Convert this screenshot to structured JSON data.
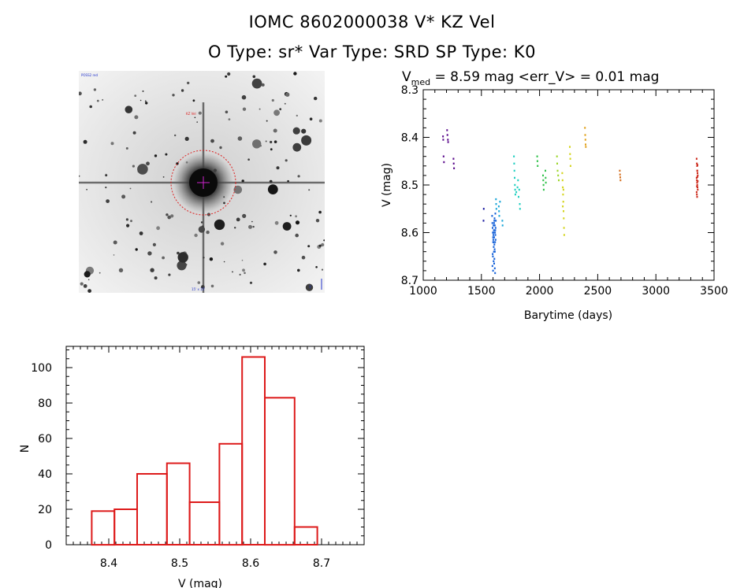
{
  "header": {
    "title": "IOMC 8602000038    V* KZ Vel",
    "subtitle": "O Type: sr*  Var Type: SRD  SP Type: K0"
  },
  "finder": {
    "top_left_label": "POSS2 red",
    "target_label": "KZ Vel",
    "bottom_label": "15' x 15'",
    "scale_label": "1'",
    "colors": {
      "circle": "#dd2222",
      "label": "#2233cc"
    }
  },
  "chart_data": [
    {
      "type": "scatter",
      "title_prefix": "V",
      "title_sub": "med",
      "title_rest": " = 8.59 mag <err_V> = 0.01 mag",
      "xlabel": "Barytime (days)",
      "ylabel": "V (mag)",
      "xlim": [
        1000,
        3500
      ],
      "ylim": [
        8.7,
        8.3
      ],
      "xticks": [
        1000,
        1500,
        2000,
        2500,
        3000,
        3500
      ],
      "yticks": [
        8.3,
        8.4,
        8.5,
        8.6,
        8.7
      ],
      "groups": [
        {
          "color": "#5a0a8c",
          "points": [
            [
              1170,
              8.398
            ],
            [
              1172,
              8.405
            ],
            [
              1175,
              8.44
            ],
            [
              1178,
              8.452
            ],
            [
              1205,
              8.385
            ],
            [
              1208,
              8.395
            ],
            [
              1212,
              8.405
            ],
            [
              1214,
              8.41
            ],
            [
              1260,
              8.445
            ],
            [
              1262,
              8.455
            ],
            [
              1265,
              8.465
            ]
          ]
        },
        {
          "color": "#1a1aa0",
          "points": [
            [
              1520,
              8.55
            ],
            [
              1518,
              8.575
            ]
          ]
        },
        {
          "color": "#1460d8",
          "points": [
            [
              1592,
              8.565
            ],
            [
              1594,
              8.58
            ],
            [
              1596,
              8.59
            ],
            [
              1598,
              8.6
            ],
            [
              1600,
              8.61
            ],
            [
              1602,
              8.615
            ],
            [
              1604,
              8.62
            ],
            [
              1606,
              8.63
            ],
            [
              1608,
              8.64
            ],
            [
              1597,
              8.645
            ],
            [
              1599,
              8.65
            ],
            [
              1601,
              8.62
            ],
            [
              1603,
              8.605
            ],
            [
              1605,
              8.6
            ],
            [
              1607,
              8.595
            ],
            [
              1609,
              8.58
            ],
            [
              1611,
              8.575
            ],
            [
              1613,
              8.57
            ],
            [
              1615,
              8.585
            ],
            [
              1617,
              8.6
            ],
            [
              1610,
              8.61
            ],
            [
              1612,
              8.625
            ],
            [
              1614,
              8.635
            ],
            [
              1616,
              8.64
            ],
            [
              1618,
              8.62
            ],
            [
              1620,
              8.605
            ],
            [
              1622,
              8.59
            ],
            [
              1624,
              8.575
            ],
            [
              1620,
              8.56
            ],
            [
              1595,
              8.67
            ],
            [
              1600,
              8.68
            ],
            [
              1605,
              8.66
            ],
            [
              1610,
              8.665
            ],
            [
              1615,
              8.675
            ],
            [
              1618,
              8.685
            ],
            [
              1612,
              8.655
            ],
            [
              1604,
              8.585
            ],
            [
              1622,
              8.615
            ],
            [
              1619,
              8.595
            ]
          ]
        },
        {
          "color": "#1aa6d8",
          "points": [
            [
              1625,
              8.53
            ],
            [
              1627,
              8.54
            ],
            [
              1629,
              8.55
            ],
            [
              1650,
              8.545
            ],
            [
              1652,
              8.555
            ],
            [
              1654,
              8.565
            ],
            [
              1660,
              8.535
            ],
            [
              1680,
              8.575
            ],
            [
              1682,
              8.585
            ]
          ]
        },
        {
          "color": "#20cfc0",
          "points": [
            [
              1780,
              8.44
            ],
            [
              1782,
              8.455
            ],
            [
              1784,
              8.47
            ],
            [
              1786,
              8.485
            ],
            [
              1788,
              8.5
            ],
            [
              1790,
              8.51
            ],
            [
              1792,
              8.52
            ],
            [
              1800,
              8.515
            ],
            [
              1810,
              8.505
            ],
            [
              1815,
              8.49
            ],
            [
              1820,
              8.525
            ],
            [
              1825,
              8.51
            ],
            [
              1830,
              8.54
            ],
            [
              1832,
              8.55
            ]
          ]
        },
        {
          "color": "#30c24a",
          "points": [
            [
              1980,
              8.44
            ],
            [
              1982,
              8.45
            ],
            [
              1984,
              8.46
            ],
            [
              2030,
              8.48
            ],
            [
              2032,
              8.49
            ],
            [
              2034,
              8.5
            ],
            [
              2036,
              8.51
            ],
            [
              2050,
              8.47
            ],
            [
              2052,
              8.485
            ],
            [
              2054,
              8.495
            ]
          ]
        },
        {
          "color": "#9bd628",
          "points": [
            [
              2150,
              8.44
            ],
            [
              2152,
              8.455
            ],
            [
              2155,
              8.47
            ],
            [
              2160,
              8.48
            ],
            [
              2165,
              8.49
            ]
          ]
        },
        {
          "color": "#d4d41c",
          "points": [
            [
              2195,
              8.475
            ],
            [
              2198,
              8.49
            ],
            [
              2200,
              8.505
            ],
            [
              2202,
              8.52
            ],
            [
              2204,
              8.535
            ],
            [
              2206,
              8.555
            ],
            [
              2208,
              8.57
            ],
            [
              2210,
              8.59
            ],
            [
              2212,
              8.605
            ],
            [
              2200,
              8.545
            ],
            [
              2205,
              8.51
            ],
            [
              2260,
              8.42
            ],
            [
              2262,
              8.435
            ],
            [
              2264,
              8.445
            ],
            [
              2266,
              8.46
            ]
          ]
        },
        {
          "color": "#e0a018",
          "points": [
            [
              2390,
              8.38
            ],
            [
              2392,
              8.395
            ],
            [
              2394,
              8.405
            ],
            [
              2396,
              8.415
            ],
            [
              2398,
              8.42
            ]
          ]
        },
        {
          "color": "#d47020",
          "points": [
            [
              2690,
              8.47
            ],
            [
              2692,
              8.478
            ],
            [
              2694,
              8.484
            ],
            [
              2696,
              8.49
            ]
          ]
        },
        {
          "color": "#cc2a1c",
          "points": [
            [
              3350,
              8.445
            ],
            [
              3352,
              8.455
            ],
            [
              3354,
              8.46
            ],
            [
              3356,
              8.47
            ],
            [
              3358,
              8.475
            ],
            [
              3360,
              8.48
            ],
            [
              3350,
              8.485
            ],
            [
              3352,
              8.49
            ],
            [
              3354,
              8.495
            ],
            [
              3356,
              8.5
            ],
            [
              3358,
              8.505
            ],
            [
              3360,
              8.51
            ],
            [
              3350,
              8.515
            ],
            [
              3352,
              8.52
            ],
            [
              3354,
              8.525
            ],
            [
              3356,
              8.47
            ],
            [
              3358,
              8.458
            ],
            [
              3360,
              8.492
            ],
            [
              3353,
              8.503
            ],
            [
              3357,
              8.483
            ]
          ]
        }
      ]
    },
    {
      "type": "bar",
      "xlabel": "V (mag)",
      "ylabel": "N",
      "xlim": [
        8.34,
        8.76
      ],
      "ylim": [
        0,
        112
      ],
      "xticks": [
        8.4,
        8.5,
        8.6,
        8.7
      ],
      "yticks": [
        0,
        20,
        40,
        60,
        80,
        100
      ],
      "bin_edges": [
        8.376,
        8.408,
        8.44,
        8.482,
        8.514,
        8.556,
        8.588,
        8.62,
        8.662,
        8.694
      ],
      "values": [
        19,
        20,
        40,
        46,
        24,
        57,
        106,
        83,
        10
      ],
      "color": "#dd1a1a"
    }
  ]
}
